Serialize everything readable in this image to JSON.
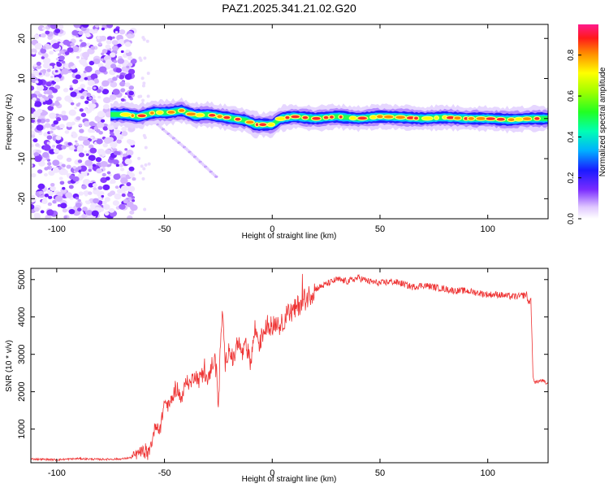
{
  "chart_data": [
    {
      "type": "heatmap",
      "title": "PAZ1.2025.341.21.02.G20",
      "xlabel": "Height of straight line (km)",
      "ylabel": "Frequency (Hz)",
      "xlim": [
        -112,
        128
      ],
      "ylim": [
        -25,
        23.5
      ],
      "xticks": [
        -100,
        -50,
        0,
        50,
        100
      ],
      "yticks": [
        -20,
        -10,
        0,
        10,
        20
      ],
      "xtick_labels": [
        "-100",
        "-50",
        "0",
        "50",
        "100"
      ],
      "ytick_labels": [
        "-20",
        "-10",
        "0",
        "10",
        "20"
      ],
      "ridge": {
        "x": [
          -75,
          -68,
          -62,
          -55,
          -48,
          -42,
          -36,
          -30,
          -24,
          -18,
          -12,
          -8,
          -4,
          0,
          4,
          10,
          20,
          30,
          40,
          50,
          60,
          70,
          80,
          90,
          100,
          110,
          120,
          128
        ],
        "freq": [
          1.0,
          1.0,
          0.5,
          1.5,
          1.5,
          2.0,
          0.8,
          1.0,
          0.5,
          0.0,
          -0.5,
          -1.5,
          -1.5,
          -1.5,
          0.0,
          0.5,
          0.0,
          0.5,
          0.0,
          0.5,
          0.3,
          0.0,
          0.3,
          0.0,
          0.0,
          -0.3,
          0.0,
          0.0
        ]
      },
      "secondary_trace": {
        "x": [
          -58,
          -50,
          -40,
          -32,
          -26
        ],
        "freq": [
          1.0,
          -3.0,
          -7.5,
          -11.5,
          -14.5
        ]
      },
      "noise_region_x": [
        -112,
        -64
      ],
      "colorbar": {
        "label": "Normalized spectral amplitude",
        "range": [
          0.0,
          0.95
        ],
        "ticks": [
          "0.0",
          "0.2",
          "0.4",
          "0.6",
          "0.8"
        ]
      }
    },
    {
      "type": "line",
      "xlabel": "Height of straight line (km)",
      "ylabel": "SNR (10 * v/v)",
      "xlim": [
        -112,
        128
      ],
      "ylim": [
        100,
        5300
      ],
      "xticks": [
        -100,
        -50,
        0,
        50,
        100
      ],
      "yticks": [
        1000,
        2000,
        3000,
        4000,
        5000
      ],
      "xtick_labels": [
        "-100",
        "-50",
        "0",
        "50",
        "100"
      ],
      "ytick_labels": [
        "1000",
        "2000",
        "3000",
        "4000",
        "5000"
      ],
      "series": [
        {
          "name": "SNR",
          "color": "#ee3333",
          "x": [
            -112,
            -100,
            -90,
            -80,
            -70,
            -65,
            -62,
            -60,
            -58,
            -56,
            -54,
            -52,
            -50,
            -48,
            -46,
            -44,
            -42,
            -40,
            -38,
            -36,
            -34,
            -32,
            -30,
            -28,
            -26,
            -25,
            -24,
            -23,
            -22,
            -20,
            -18,
            -16,
            -14,
            -12,
            -10,
            -8,
            -6,
            -4,
            -2,
            0,
            2,
            4,
            6,
            8,
            10,
            12,
            14,
            16,
            18,
            20,
            22,
            24,
            26,
            28,
            30,
            35,
            40,
            45,
            50,
            55,
            60,
            65,
            70,
            75,
            80,
            85,
            90,
            95,
            100,
            105,
            110,
            115,
            118,
            119,
            120,
            121,
            122,
            125,
            128
          ],
          "values": [
            200,
            180,
            210,
            190,
            200,
            240,
            360,
            420,
            280,
            620,
            1150,
            980,
            1750,
            1600,
            1900,
            2100,
            1750,
            2300,
            2200,
            2500,
            2300,
            2600,
            2200,
            2750,
            2900,
            1500,
            3300,
            4200,
            2700,
            3200,
            2800,
            3400,
            3000,
            3200,
            2800,
            3700,
            3300,
            3600,
            3850,
            3700,
            3900,
            3750,
            4000,
            4100,
            4150,
            4300,
            4450,
            4500,
            4650,
            4750,
            4800,
            4850,
            4900,
            4950,
            5000,
            4950,
            5050,
            4950,
            4900,
            4950,
            4900,
            4800,
            4850,
            4800,
            4750,
            4700,
            4700,
            4650,
            4600,
            4600,
            4550,
            4550,
            4600,
            4350,
            4500,
            2400,
            2250,
            2300,
            2200
          ]
        }
      ]
    }
  ]
}
